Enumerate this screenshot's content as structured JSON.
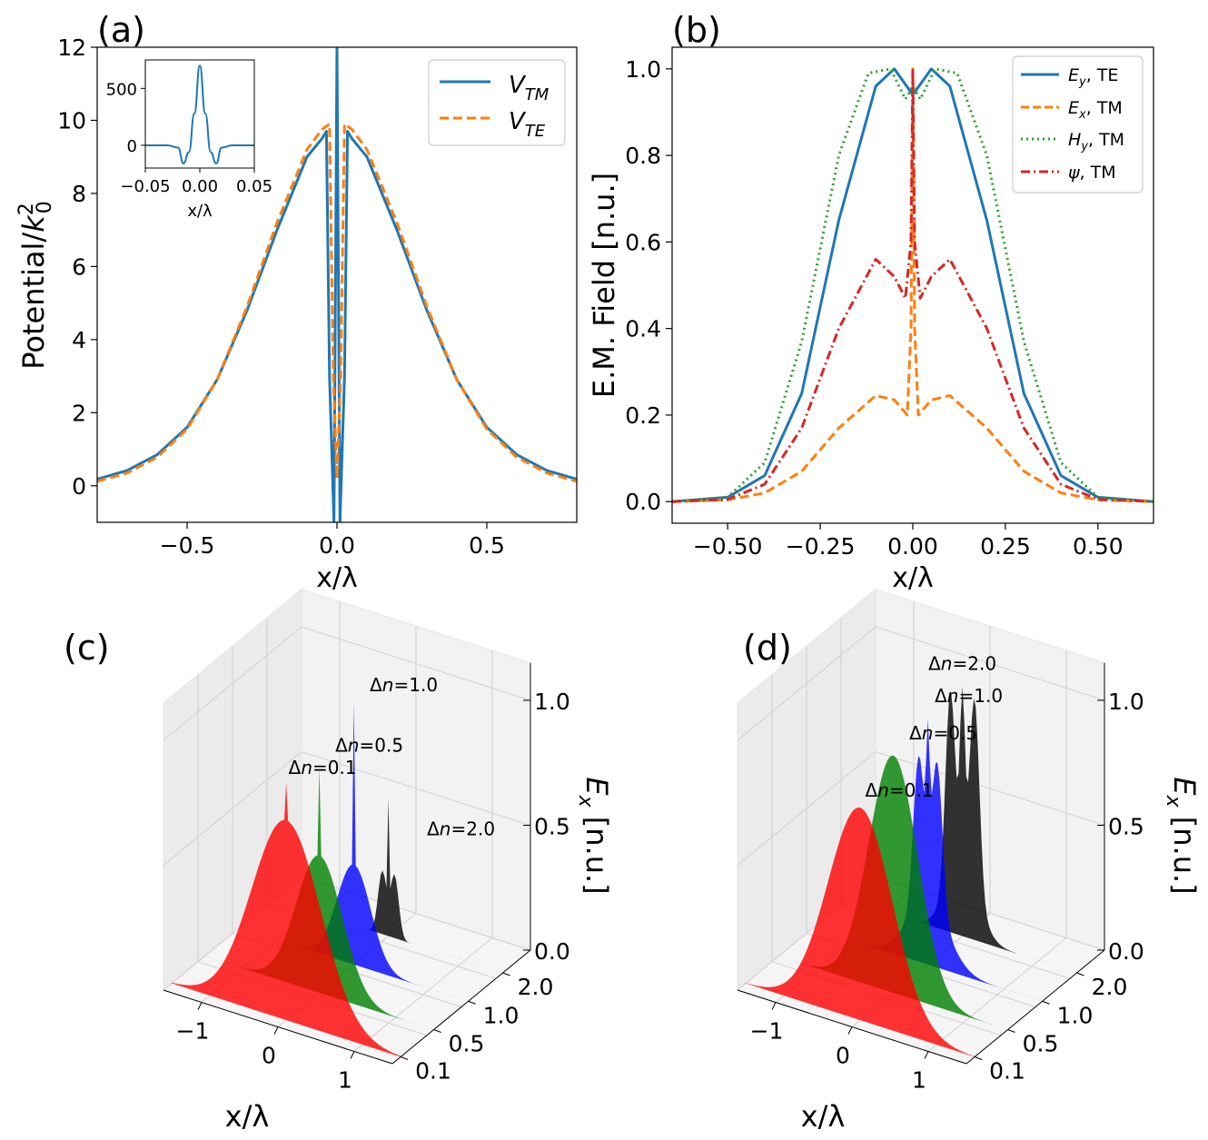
{
  "colors": {
    "blue": "#1f77b4",
    "orange": "#ff7f0e",
    "green": "#2ca02c",
    "red": "#d62728",
    "stack_red": "#ff0000",
    "stack_green": "#008000",
    "stack_blue": "#0000ff",
    "stack_black": "#000000"
  },
  "chart_data": [
    {
      "panel_label": "(a)",
      "type": "line",
      "xlabel": "x/λ",
      "ylabel": "Potential/k₀²",
      "xlim": [
        -0.8,
        0.8
      ],
      "ylim": [
        -1,
        12
      ],
      "xticks": [
        -0.5,
        0.0,
        0.5
      ],
      "xtick_labels": [
        "−0.5",
        "0.0",
        "0.5"
      ],
      "yticks": [
        0,
        2,
        4,
        6,
        8,
        10,
        12
      ],
      "ytick_labels": [
        "0",
        "2",
        "4",
        "6",
        "8",
        "10",
        "12"
      ],
      "legend_position": "top-right",
      "series": [
        {
          "name": "V_TM",
          "label_main": "V",
          "label_sub": "TM",
          "color_key": "blue",
          "style": "solid",
          "x": [
            -0.8,
            -0.7,
            -0.6,
            -0.5,
            -0.4,
            -0.3,
            -0.2,
            -0.1,
            -0.05,
            -0.035,
            -0.025,
            -0.01,
            0.0,
            0.01,
            0.025,
            0.035,
            0.05,
            0.1,
            0.2,
            0.3,
            0.4,
            0.5,
            0.6,
            0.7,
            0.8
          ],
          "y": [
            0.18,
            0.42,
            0.85,
            1.6,
            2.9,
            4.8,
            7.0,
            9.0,
            9.5,
            9.7,
            3.0,
            -1.0,
            12.0,
            -1.0,
            3.0,
            9.7,
            9.5,
            9.0,
            7.0,
            4.8,
            2.9,
            1.6,
            0.85,
            0.42,
            0.18
          ]
        },
        {
          "name": "V_TE",
          "label_main": "V",
          "label_sub": "TE",
          "color_key": "orange",
          "style": "dashed",
          "x": [
            -0.8,
            -0.7,
            -0.6,
            -0.5,
            -0.4,
            -0.3,
            -0.2,
            -0.1,
            -0.05,
            -0.025,
            -0.012,
            0.0,
            0.012,
            0.025,
            0.05,
            0.1,
            0.2,
            0.3,
            0.4,
            0.5,
            0.6,
            0.7,
            0.8
          ],
          "y": [
            0.12,
            0.35,
            0.78,
            1.55,
            2.9,
            4.9,
            7.2,
            9.2,
            9.75,
            9.9,
            3.0,
            0.2,
            3.0,
            9.9,
            9.75,
            9.2,
            7.2,
            4.9,
            2.9,
            1.55,
            0.78,
            0.35,
            0.12
          ]
        }
      ],
      "inset": {
        "type": "line",
        "xlabel": "x/λ",
        "xlim": [
          -0.05,
          0.05
        ],
        "ylim": [
          -200,
          750
        ],
        "xtick_labels": [
          "−0.05",
          "0.00",
          "0.05"
        ],
        "ytick_labels": [
          "500",
          "0"
        ],
        "x": [
          -0.05,
          -0.03,
          -0.02,
          -0.015,
          -0.01,
          -0.005,
          0.0,
          0.005,
          0.01,
          0.015,
          0.02,
          0.03,
          0.05
        ],
        "y": [
          0,
          0,
          -20,
          -160,
          -60,
          280,
          700,
          280,
          -60,
          -160,
          -20,
          0,
          0
        ]
      }
    },
    {
      "panel_label": "(b)",
      "type": "line",
      "xlabel": "x/λ",
      "ylabel": "E.M. Field [n.u.]",
      "xlim": [
        -0.65,
        0.65
      ],
      "ylim": [
        -0.05,
        1.05
      ],
      "xtick_labels": [
        "−0.50",
        "−0.25",
        "0.00",
        "0.25",
        "0.50"
      ],
      "xticks": [
        -0.5,
        -0.25,
        0.0,
        0.25,
        0.5
      ],
      "ytick_labels": [
        "0.0",
        "0.2",
        "0.4",
        "0.6",
        "0.8",
        "1.0"
      ],
      "yticks": [
        0.0,
        0.2,
        0.4,
        0.6,
        0.8,
        1.0
      ],
      "legend_position": "top-right",
      "series": [
        {
          "name": "E_y, TE",
          "label_main": "E",
          "label_sub": "y",
          "label_rest": ", TE",
          "color_key": "blue",
          "style": "solid",
          "x": [
            -0.65,
            -0.5,
            -0.4,
            -0.3,
            -0.2,
            -0.1,
            -0.05,
            0.0,
            0.05,
            0.1,
            0.2,
            0.3,
            0.4,
            0.5,
            0.65
          ],
          "y": [
            0.0,
            0.01,
            0.06,
            0.25,
            0.65,
            0.96,
            1.0,
            0.94,
            1.0,
            0.96,
            0.65,
            0.25,
            0.06,
            0.01,
            0.0
          ]
        },
        {
          "name": "E_x, TM",
          "label_main": "E",
          "label_sub": "x",
          "label_rest": ", TM",
          "color_key": "orange",
          "style": "dashed",
          "x": [
            -0.65,
            -0.5,
            -0.4,
            -0.3,
            -0.2,
            -0.1,
            -0.05,
            -0.015,
            -0.005,
            0.0,
            0.005,
            0.015,
            0.05,
            0.1,
            0.2,
            0.3,
            0.4,
            0.5,
            0.65
          ],
          "y": [
            0.0,
            0.004,
            0.02,
            0.07,
            0.17,
            0.245,
            0.235,
            0.2,
            0.4,
            1.0,
            0.4,
            0.2,
            0.235,
            0.245,
            0.17,
            0.07,
            0.02,
            0.004,
            0.0
          ]
        },
        {
          "name": "H_y, TM",
          "label_main": "H",
          "label_sub": "y",
          "label_rest": ", TM",
          "color_key": "green",
          "style": "dotted",
          "x": [
            -0.65,
            -0.5,
            -0.4,
            -0.3,
            -0.2,
            -0.12,
            -0.06,
            -0.02,
            0.0,
            0.02,
            0.06,
            0.12,
            0.2,
            0.3,
            0.4,
            0.5,
            0.65
          ],
          "y": [
            0.0,
            0.01,
            0.09,
            0.37,
            0.8,
            0.99,
            1.0,
            0.93,
            0.96,
            0.93,
            1.0,
            0.99,
            0.8,
            0.37,
            0.09,
            0.01,
            0.0
          ]
        },
        {
          "name": "ψ, TM",
          "label_main": "ψ",
          "label_sub": "",
          "label_rest": ", TM",
          "color_key": "red",
          "style": "dashdot",
          "x": [
            -0.65,
            -0.5,
            -0.4,
            -0.3,
            -0.2,
            -0.1,
            -0.05,
            -0.02,
            -0.005,
            0.0,
            0.005,
            0.02,
            0.05,
            0.1,
            0.2,
            0.3,
            0.4,
            0.5,
            0.65
          ],
          "y": [
            0.0,
            0.005,
            0.04,
            0.17,
            0.4,
            0.56,
            0.52,
            0.47,
            0.6,
            1.0,
            0.6,
            0.47,
            0.52,
            0.56,
            0.4,
            0.17,
            0.04,
            0.005,
            0.0
          ]
        }
      ]
    },
    {
      "panel_label": "(c)",
      "type": "area",
      "projection": "3d",
      "xlabel": "x/λ",
      "zlabel": "Eₓ [n.u.]",
      "zlabel_main": "E",
      "zlabel_sub": "x",
      "zlabel_rest": " [n.u.]",
      "xtick_labels": [
        "−1",
        "0",
        "1"
      ],
      "ytick_labels": [
        "0.1",
        "0.5",
        "1.0",
        "2.0"
      ],
      "ztick_labels": [
        "0.0",
        "0.5",
        "1.0"
      ],
      "series": [
        {
          "name": "Δn=0.1",
          "delta_label": "Δ",
          "n_label": "n",
          "value_label": "=0.1",
          "color_key": "stack_red",
          "peak": 0.8,
          "width": 0.45,
          "spike": 0.15
        },
        {
          "name": "Δn=0.5",
          "delta_label": "Δ",
          "n_label": "n",
          "value_label": "=0.5",
          "color_key": "stack_green",
          "peak": 0.55,
          "width": 0.3,
          "spike": 0.35
        },
        {
          "name": "Δn=1.0",
          "delta_label": "Δ",
          "n_label": "n",
          "value_label": "=1.0",
          "color_key": "stack_blue",
          "peak": 0.4,
          "width": 0.22,
          "spike": 0.65
        },
        {
          "name": "Δn=2.0",
          "delta_label": "Δ",
          "n_label": "n",
          "value_label": "=2.0",
          "color_key": "stack_black",
          "peak": 0.28,
          "width": 0.16,
          "spike": 0.55
        }
      ]
    },
    {
      "panel_label": "(d)",
      "type": "area",
      "projection": "3d",
      "xlabel": "x/λ",
      "zlabel": "Eₓ [n.u.]",
      "zlabel_main": "E",
      "zlabel_sub": "x",
      "zlabel_rest": " [n.u.]",
      "xtick_labels": [
        "−1",
        "0",
        "1"
      ],
      "ytick_labels": [
        "0.1",
        "0.5",
        "1.0",
        "2.0"
      ],
      "ztick_labels": [
        "0.0",
        "0.5",
        "1.0"
      ],
      "series": [
        {
          "name": "Δn=0.1",
          "delta_label": "Δ",
          "n_label": "n",
          "value_label": "=0.1",
          "color_key": "stack_red",
          "peak": 0.85,
          "width": 0.42,
          "bumps": 1
        },
        {
          "name": "Δn=0.5",
          "delta_label": "Δ",
          "n_label": "n",
          "value_label": "=0.5",
          "color_key": "stack_green",
          "peak": 0.95,
          "width": 0.32,
          "bumps": 1
        },
        {
          "name": "Δn=1.0",
          "delta_label": "Δ",
          "n_label": "n",
          "value_label": "=1.0",
          "color_key": "stack_blue",
          "peak": 1.0,
          "width": 0.26,
          "bumps": 2
        },
        {
          "name": "Δn=2.0",
          "delta_label": "Δ",
          "n_label": "n",
          "value_label": "=2.0",
          "color_key": "stack_black",
          "peak": 1.0,
          "width": 0.2,
          "bumps": 3
        }
      ]
    }
  ]
}
